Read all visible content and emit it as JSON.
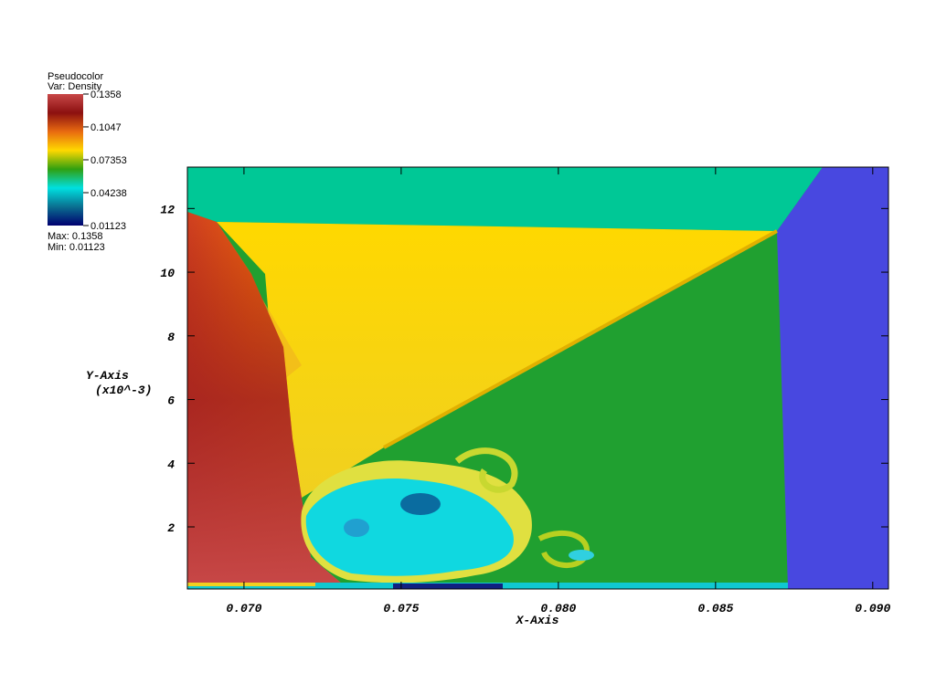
{
  "chart_data": {
    "type": "pseudocolor",
    "legend_title": "Pseudocolor",
    "variable": "Var: Density",
    "colorbar_lim": [
      0.01123,
      0.1358
    ],
    "colorbar_ticks": [
      0.1358,
      0.1047,
      0.07353,
      0.04238,
      0.01123
    ],
    "max_label": "Max: 0.1358",
    "min_label": "Min: 0.01123",
    "colors": [
      "#c84848",
      "#8c1010",
      "#e86a10",
      "#ffd800",
      "#30a010",
      "#00e0e0",
      "#0a7090",
      "#000070"
    ],
    "x_label": "X-Axis",
    "y_label": "Y-Axis",
    "y_unit": "(x10^-3)",
    "xlim": [
      0.0682,
      0.0905
    ],
    "ylim": [
      0.05,
      13.3
    ],
    "xticks": [
      {
        "value": 0.07,
        "label": "0.070"
      },
      0.075,
      {
        "value": 0.08,
        "label": "0.080"
      },
      0.085,
      {
        "value": 0.09,
        "label": "0.090"
      }
    ],
    "yticks": [
      2,
      4,
      6,
      8,
      10,
      12
    ]
  }
}
